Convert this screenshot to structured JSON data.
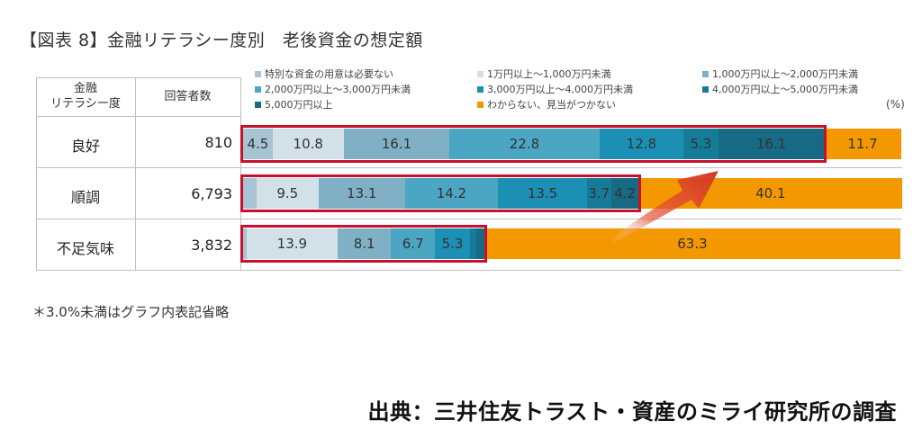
{
  "chart_data": {
    "type": "bar",
    "orientation": "horizontal-stacked",
    "title": "【図表 8】金融リテラシー度別　老後資金の想定額",
    "unit": "(%)",
    "table_headers": {
      "group": "金融\nリテラシー度",
      "count": "回答者数"
    },
    "categories": [
      "良好",
      "順調",
      "不足気味"
    ],
    "respondents": [
      "810",
      "6,793",
      "3,832"
    ],
    "legend": [
      "特別な資金の用意は必要ない",
      "1万円以上～1,000万円未満",
      "1,000万円以上～2,000万円未満",
      "2,000万円以上～3,000万円未満",
      "3,000万円以上～4,000万円未満",
      "4,000万円以上～5,000万円未満",
      "5,000万円以上",
      "わからない、見当がつかない"
    ],
    "colors": [
      "#a6c4d3",
      "#d2e1e8",
      "#7fb0c6",
      "#4aa6c3",
      "#1c90b4",
      "#157b99",
      "#176a83",
      "#f39800"
    ],
    "series": [
      {
        "name": "特別な資金の用意は必要ない",
        "values": [
          4.5,
          2.0,
          0.5
        ],
        "labels": [
          "4.5",
          "",
          ""
        ]
      },
      {
        "name": "1万円以上～1,000万円未満",
        "values": [
          10.8,
          9.5,
          13.9
        ],
        "labels": [
          "10.8",
          "9.5",
          "13.9"
        ]
      },
      {
        "name": "1,000万円以上～2,000万円未満",
        "values": [
          16.1,
          13.1,
          8.1
        ],
        "labels": [
          "16.1",
          "13.1",
          "8.1"
        ]
      },
      {
        "name": "2,000万円以上～3,000万円未満",
        "values": [
          22.8,
          14.2,
          6.7
        ],
        "labels": [
          "22.8",
          "14.2",
          "6.7"
        ]
      },
      {
        "name": "3,000万円以上～4,000万円未満",
        "values": [
          12.8,
          13.5,
          5.3
        ],
        "labels": [
          "12.8",
          "13.5",
          "5.3"
        ]
      },
      {
        "name": "4,000万円以上～5,000万円未満",
        "values": [
          5.3,
          3.7,
          1.0
        ],
        "labels": [
          "5.3",
          "3.7",
          ""
        ]
      },
      {
        "name": "5,000万円以上",
        "values": [
          16.1,
          4.2,
          1.2
        ],
        "labels": [
          "16.1",
          "4.2",
          ""
        ]
      },
      {
        "name": "わからない、見当がつかない",
        "values": [
          11.7,
          40.1,
          63.3
        ],
        "labels": [
          "11.7",
          "40.1",
          "63.3"
        ]
      }
    ],
    "xlim": [
      0,
      100
    ],
    "grid": false
  },
  "footnote": "＊3.0%未満はグラフ内表記省略",
  "source": "出典：三井住友トラスト・資産のミライ研究所の調査"
}
